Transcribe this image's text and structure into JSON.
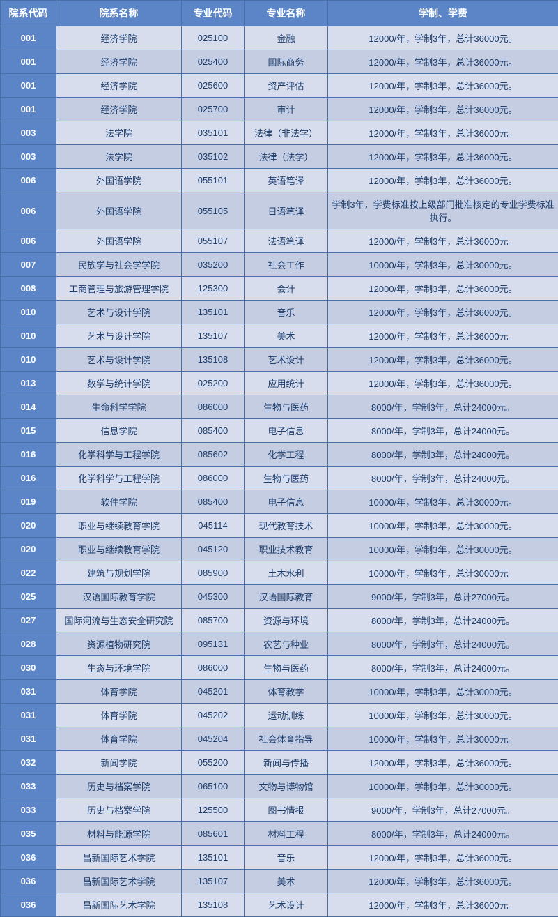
{
  "table": {
    "headers": {
      "dept_code": "院系代码",
      "dept_name": "院系名称",
      "major_code": "专业代码",
      "major_name": "专业名称",
      "tuition": "学制、学费"
    },
    "colors": {
      "header_bg": "#5b85c7",
      "header_text": "#ffffff",
      "border": "#4a6fa5",
      "row_odd_bg": "#d7dded",
      "row_even_bg": "#c5cde3",
      "text": "#1a3d6d"
    },
    "column_widths": {
      "dept_code": 80,
      "dept_name": 180,
      "major_code": 90,
      "major_name": 120,
      "tuition": 331
    },
    "rows": [
      {
        "dept_code": "001",
        "dept_name": "经济学院",
        "major_code": "025100",
        "major_name": "金融",
        "tuition": "12000/年，学制3年，总计36000元。"
      },
      {
        "dept_code": "001",
        "dept_name": "经济学院",
        "major_code": "025400",
        "major_name": "国际商务",
        "tuition": "12000/年，学制3年，总计36000元。"
      },
      {
        "dept_code": "001",
        "dept_name": "经济学院",
        "major_code": "025600",
        "major_name": "资产评估",
        "tuition": "12000/年，学制3年，总计36000元。"
      },
      {
        "dept_code": "001",
        "dept_name": "经济学院",
        "major_code": "025700",
        "major_name": "审计",
        "tuition": "12000/年，学制3年，总计36000元。"
      },
      {
        "dept_code": "003",
        "dept_name": "法学院",
        "major_code": "035101",
        "major_name": "法律（非法学）",
        "tuition": "12000/年，学制3年，总计36000元。"
      },
      {
        "dept_code": "003",
        "dept_name": "法学院",
        "major_code": "035102",
        "major_name": "法律（法学）",
        "tuition": "12000/年，学制3年，总计36000元。"
      },
      {
        "dept_code": "006",
        "dept_name": "外国语学院",
        "major_code": "055101",
        "major_name": "英语笔译",
        "tuition": "12000/年，学制3年，总计36000元。"
      },
      {
        "dept_code": "006",
        "dept_name": "外国语学院",
        "major_code": "055105",
        "major_name": "日语笔译",
        "tuition": "学制3年，学费标准按上级部门批准核定的专业学费标准执行。"
      },
      {
        "dept_code": "006",
        "dept_name": "外国语学院",
        "major_code": "055107",
        "major_name": "法语笔译",
        "tuition": "12000/年，学制3年，总计36000元。"
      },
      {
        "dept_code": "007",
        "dept_name": "民族学与社会学学院",
        "major_code": "035200",
        "major_name": "社会工作",
        "tuition": "10000/年，学制3年，总计30000元。"
      },
      {
        "dept_code": "008",
        "dept_name": "工商管理与旅游管理学院",
        "major_code": "125300",
        "major_name": "会计",
        "tuition": "12000/年，学制3年，总计36000元。"
      },
      {
        "dept_code": "010",
        "dept_name": "艺术与设计学院",
        "major_code": "135101",
        "major_name": "音乐",
        "tuition": "12000/年，学制3年，总计36000元。"
      },
      {
        "dept_code": "010",
        "dept_name": "艺术与设计学院",
        "major_code": "135107",
        "major_name": "美术",
        "tuition": "12000/年，学制3年，总计36000元。"
      },
      {
        "dept_code": "010",
        "dept_name": "艺术与设计学院",
        "major_code": "135108",
        "major_name": "艺术设计",
        "tuition": "12000/年，学制3年，总计36000元。"
      },
      {
        "dept_code": "013",
        "dept_name": "数学与统计学院",
        "major_code": "025200",
        "major_name": "应用统计",
        "tuition": "12000/年，学制3年，总计36000元。"
      },
      {
        "dept_code": "014",
        "dept_name": "生命科学学院",
        "major_code": "086000",
        "major_name": "生物与医药",
        "tuition": "8000/年，学制3年，总计24000元。"
      },
      {
        "dept_code": "015",
        "dept_name": "信息学院",
        "major_code": "085400",
        "major_name": "电子信息",
        "tuition": "8000/年，学制3年，总计24000元。"
      },
      {
        "dept_code": "016",
        "dept_name": "化学科学与工程学院",
        "major_code": "085602",
        "major_name": "化学工程",
        "tuition": "8000/年，学制3年，总计24000元。"
      },
      {
        "dept_code": "016",
        "dept_name": "化学科学与工程学院",
        "major_code": "086000",
        "major_name": "生物与医药",
        "tuition": "8000/年，学制3年，总计24000元。"
      },
      {
        "dept_code": "019",
        "dept_name": "软件学院",
        "major_code": "085400",
        "major_name": "电子信息",
        "tuition": "10000/年，学制3年，总计30000元。"
      },
      {
        "dept_code": "020",
        "dept_name": "职业与继续教育学院",
        "major_code": "045114",
        "major_name": "现代教育技术",
        "tuition": "10000/年，学制3年，总计30000元。"
      },
      {
        "dept_code": "020",
        "dept_name": "职业与继续教育学院",
        "major_code": "045120",
        "major_name": "职业技术教育",
        "tuition": "10000/年，学制3年，总计30000元。"
      },
      {
        "dept_code": "022",
        "dept_name": "建筑与规划学院",
        "major_code": "085900",
        "major_name": "土木水利",
        "tuition": "10000/年，学制3年，总计30000元。"
      },
      {
        "dept_code": "025",
        "dept_name": "汉语国际教育学院",
        "major_code": "045300",
        "major_name": "汉语国际教育",
        "tuition": "9000/年，学制3年，总计27000元。"
      },
      {
        "dept_code": "027",
        "dept_name": "国际河流与生态安全研究院",
        "major_code": "085700",
        "major_name": "资源与环境",
        "tuition": "8000/年，学制3年，总计24000元。"
      },
      {
        "dept_code": "028",
        "dept_name": "资源植物研究院",
        "major_code": "095131",
        "major_name": "农艺与种业",
        "tuition": "8000/年，学制3年，总计24000元。"
      },
      {
        "dept_code": "030",
        "dept_name": "生态与环境学院",
        "major_code": "086000",
        "major_name": "生物与医药",
        "tuition": "8000/年，学制3年，总计24000元。"
      },
      {
        "dept_code": "031",
        "dept_name": "体育学院",
        "major_code": "045201",
        "major_name": "体育教学",
        "tuition": "10000/年，学制3年，总计30000元。"
      },
      {
        "dept_code": "031",
        "dept_name": "体育学院",
        "major_code": "045202",
        "major_name": "运动训练",
        "tuition": "10000/年，学制3年，总计30000元。"
      },
      {
        "dept_code": "031",
        "dept_name": "体育学院",
        "major_code": "045204",
        "major_name": "社会体育指导",
        "tuition": "10000/年，学制3年，总计30000元。"
      },
      {
        "dept_code": "032",
        "dept_name": "新闻学院",
        "major_code": "055200",
        "major_name": "新闻与传播",
        "tuition": "12000/年，学制3年，总计36000元。"
      },
      {
        "dept_code": "033",
        "dept_name": "历史与档案学院",
        "major_code": "065100",
        "major_name": "文物与博物馆",
        "tuition": "10000/年，学制3年，总计30000元。"
      },
      {
        "dept_code": "033",
        "dept_name": "历史与档案学院",
        "major_code": "125500",
        "major_name": "图书情报",
        "tuition": "9000/年，学制3年，总计27000元。"
      },
      {
        "dept_code": "035",
        "dept_name": "材料与能源学院",
        "major_code": "085601",
        "major_name": "材料工程",
        "tuition": "8000/年，学制3年，总计24000元。"
      },
      {
        "dept_code": "036",
        "dept_name": "昌新国际艺术学院",
        "major_code": "135101",
        "major_name": "音乐",
        "tuition": "12000/年，学制3年，总计36000元。"
      },
      {
        "dept_code": "036",
        "dept_name": "昌新国际艺术学院",
        "major_code": "135107",
        "major_name": "美术",
        "tuition": "12000/年，学制3年，总计36000元。"
      },
      {
        "dept_code": "036",
        "dept_name": "昌新国际艺术学院",
        "major_code": "135108",
        "major_name": "艺术设计",
        "tuition": "12000/年，学制3年，总计36000元。"
      }
    ]
  }
}
